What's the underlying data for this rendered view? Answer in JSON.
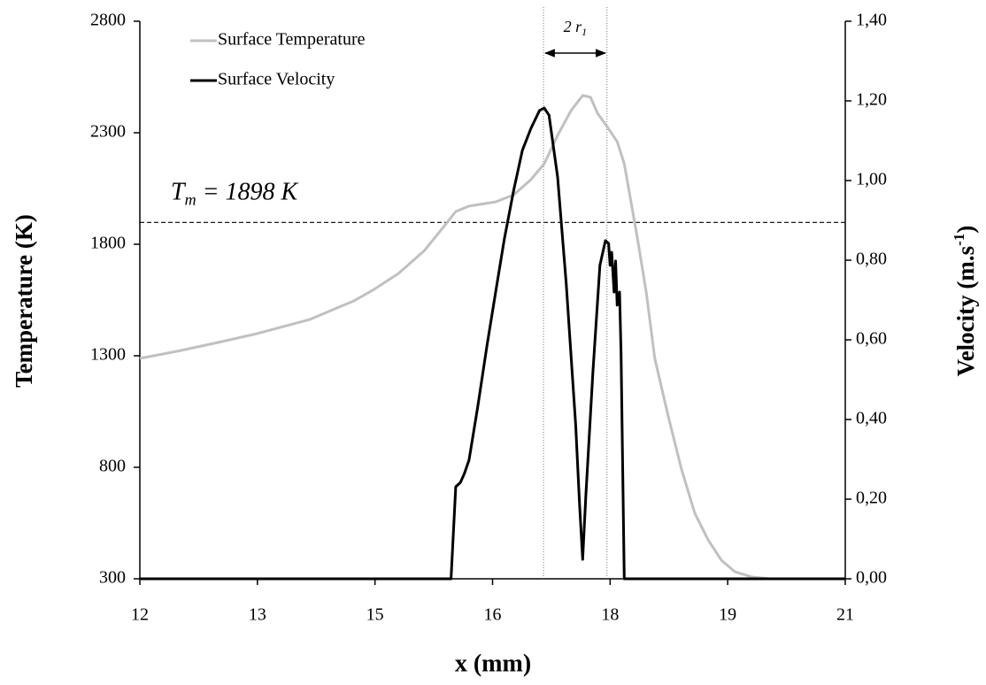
{
  "chart_data": {
    "type": "line",
    "xlabel": "x (mm)",
    "ylabel": "Temperature (K)",
    "y2label": {
      "text": "Velocity (m.s",
      "sup": "-1",
      "close": ")"
    },
    "xlim": [
      12,
      21
    ],
    "xticks": [
      12,
      {
        "value": 13.5,
        "label": "13"
      },
      15,
      {
        "value": 16.5,
        "label": "16"
      },
      18,
      {
        "value": 19.5,
        "label": "19"
      },
      21
    ],
    "ylim": [
      300,
      2800
    ],
    "yticks": [
      300,
      800,
      1300,
      1800,
      2300,
      2800
    ],
    "y2lim": [
      0,
      1.4
    ],
    "y2ticks": [
      {
        "value": 0,
        "label": "0,00"
      },
      {
        "value": 0.2,
        "label": "0,20"
      },
      {
        "value": 0.4,
        "label": "0,40"
      },
      {
        "value": 0.6,
        "label": "0,60"
      },
      {
        "value": 0.8,
        "label": "0,80"
      },
      {
        "value": 1.0,
        "label": "1,00"
      },
      {
        "value": 1.2,
        "label": "1,20"
      },
      {
        "value": 1.4,
        "label": "1,40"
      }
    ],
    "grid": false,
    "legend": "upper left",
    "series": [
      {
        "name": "Surface Temperature",
        "color": "#c0c0c0",
        "x": [
          12,
          12.47,
          13.04,
          13.49,
          14.17,
          14.73,
          14.99,
          15.3,
          15.63,
          15.86,
          16.03,
          16.2,
          16.54,
          16.77,
          16.99,
          17.16,
          17.33,
          17.5,
          17.65,
          17.75,
          17.84,
          17.96,
          18.09,
          18.18,
          18.26,
          18.35,
          18.46,
          18.57,
          18.74,
          18.91,
          19.08,
          19.25,
          19.42,
          19.59,
          19.81,
          20.04,
          21
        ],
        "values": [
          1288,
          1320,
          1363,
          1399,
          1463,
          1546,
          1598,
          1669,
          1772,
          1871,
          1947,
          1971,
          1990,
          2022,
          2090,
          2161,
          2288,
          2399,
          2467,
          2459,
          2387,
          2328,
          2260,
          2161,
          2002,
          1824,
          1586,
          1288,
          1030,
          792,
          594,
          475,
          383,
          332,
          308,
          300,
          300
        ]
      },
      {
        "name": "Surface Velocity",
        "color": "#000000",
        "axis": "y2",
        "x": [
          12,
          15.97,
          16.03,
          16.09,
          16.14,
          16.2,
          16.31,
          16.43,
          16.54,
          16.65,
          16.77,
          16.88,
          16.99,
          17.1,
          17.16,
          17.22,
          17.33,
          17.44,
          17.56,
          17.61,
          17.65,
          17.69,
          17.78,
          17.87,
          17.94,
          17.98,
          18.0,
          18.02,
          18.05,
          18.07,
          18.09,
          18.12,
          18.14,
          18.18,
          21
        ],
        "values": [
          0,
          0,
          0.231,
          0.242,
          0.264,
          0.298,
          0.431,
          0.587,
          0.72,
          0.853,
          0.976,
          1.076,
          1.131,
          1.176,
          1.182,
          1.164,
          1.009,
          0.742,
          0.387,
          0.187,
          0.049,
          0.209,
          0.52,
          0.787,
          0.849,
          0.842,
          0.787,
          0.82,
          0.72,
          0.798,
          0.687,
          0.72,
          0.564,
          0,
          0
        ]
      }
    ],
    "melt_line": {
      "value": 1898,
      "symbol": "T",
      "sub": "m",
      "text": " = 1898 K"
    },
    "radius_marks": {
      "x": [
        17.15,
        17.96
      ],
      "symbol": "2 r",
      "sub": "1"
    }
  }
}
